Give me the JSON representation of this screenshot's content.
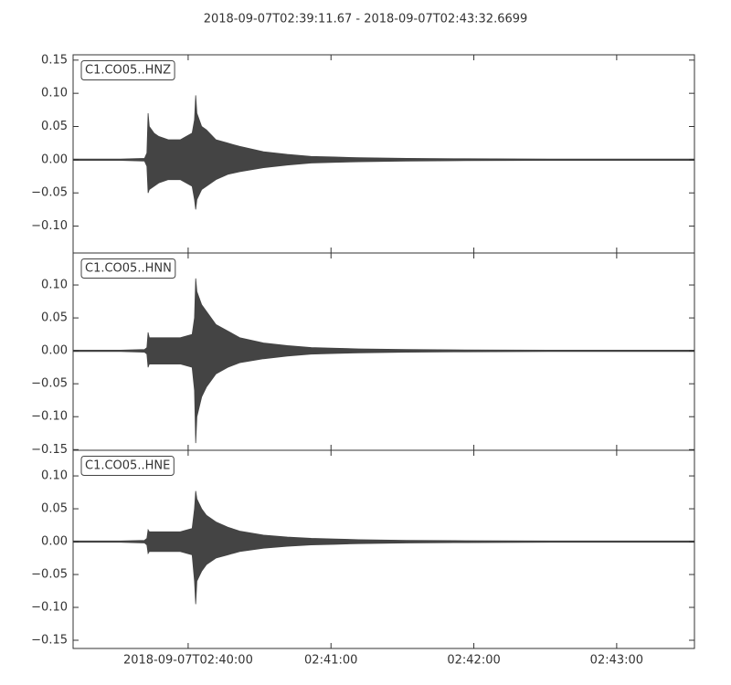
{
  "title": "2018-09-07T02:39:11.67  -  2018-09-07T02:43:32.6699",
  "chart_data": [
    {
      "type": "envelope",
      "annotation": "C1.CO05..HNZ",
      "x": [
        0,
        20,
        30,
        31,
        31.5,
        32,
        34,
        36,
        40,
        45,
        50,
        51,
        51.5,
        52,
        54,
        56,
        60,
        65,
        70,
        80,
        90,
        100,
        110,
        120,
        140,
        160,
        200,
        261
      ],
      "xlim": [
        0,
        261
      ],
      "series": [
        {
          "color": "#444444",
          "values": [
            0.001,
            0.001,
            0.002,
            0.01,
            0.07,
            0.05,
            0.04,
            0.035,
            0.03,
            0.03,
            0.04,
            0.06,
            0.097,
            0.07,
            0.05,
            0.045,
            0.03,
            0.025,
            0.02,
            0.012,
            0.008,
            0.005,
            0.004,
            0.003,
            0.002,
            0.0015,
            0.001,
            0.001
          ]
        },
        {
          "color": "#444444",
          "values": [
            -0.001,
            -0.001,
            -0.002,
            -0.01,
            -0.05,
            -0.045,
            -0.04,
            -0.035,
            -0.03,
            -0.03,
            -0.04,
            -0.06,
            -0.075,
            -0.06,
            -0.045,
            -0.04,
            -0.03,
            -0.022,
            -0.018,
            -0.012,
            -0.008,
            -0.005,
            -0.004,
            -0.003,
            -0.002,
            -0.0015,
            -0.001,
            -0.001
          ]
        }
      ],
      "ylim": [
        -0.1405,
        0.158
      ],
      "yticks": [
        {
          "value": -0.1,
          "label": "−0.10"
        },
        {
          "value": -0.05,
          "label": "−0.05"
        },
        {
          "value": 0,
          "label": "0.00"
        },
        {
          "value": 0.05,
          "label": "0.05"
        },
        {
          "value": 0.1,
          "label": "0.10"
        },
        {
          "value": 0.15,
          "label": "0.15"
        }
      ]
    },
    {
      "type": "envelope",
      "annotation": "C1.CO05..HNN",
      "x": [
        0,
        20,
        30,
        31,
        31.5,
        32,
        34,
        36,
        40,
        45,
        50,
        51,
        51.5,
        52,
        54,
        56,
        60,
        65,
        70,
        80,
        90,
        100,
        110,
        120,
        140,
        160,
        200,
        261
      ],
      "xlim": [
        0,
        261
      ],
      "series": [
        {
          "color": "#444444",
          "values": [
            0.001,
            0.001,
            0.002,
            0.005,
            0.028,
            0.02,
            0.02,
            0.02,
            0.02,
            0.02,
            0.025,
            0.05,
            0.11,
            0.09,
            0.07,
            0.06,
            0.04,
            0.03,
            0.02,
            0.012,
            0.008,
            0.005,
            0.004,
            0.003,
            0.002,
            0.0015,
            0.001,
            0.001
          ]
        },
        {
          "color": "#444444",
          "values": [
            -0.001,
            -0.001,
            -0.002,
            -0.005,
            -0.025,
            -0.02,
            -0.02,
            -0.02,
            -0.02,
            -0.02,
            -0.025,
            -0.06,
            -0.14,
            -0.1,
            -0.07,
            -0.055,
            -0.035,
            -0.025,
            -0.018,
            -0.012,
            -0.008,
            -0.005,
            -0.004,
            -0.003,
            -0.002,
            -0.0015,
            -0.001,
            -0.001
          ]
        }
      ],
      "ylim": [
        -0.151,
        0.1486
      ],
      "yticks": [
        {
          "value": -0.15,
          "label": "−0.15"
        },
        {
          "value": -0.1,
          "label": "−0.10"
        },
        {
          "value": -0.05,
          "label": "−0.05"
        },
        {
          "value": 0,
          "label": "0.00"
        },
        {
          "value": 0.05,
          "label": "0.05"
        },
        {
          "value": 0.1,
          "label": "0.10"
        }
      ]
    },
    {
      "type": "envelope",
      "annotation": "C1.CO05..HNE",
      "x": [
        0,
        20,
        30,
        31,
        31.5,
        32,
        34,
        36,
        40,
        45,
        50,
        51,
        51.5,
        52,
        54,
        56,
        60,
        65,
        70,
        80,
        90,
        100,
        110,
        120,
        140,
        160,
        200,
        261
      ],
      "xlim": [
        0,
        261
      ],
      "xticks": [
        {
          "value": 48.33,
          "label": "2018-09-07T02:40:00"
        },
        {
          "value": 108.33,
          "label": "02:41:00"
        },
        {
          "value": 168.33,
          "label": "02:42:00"
        },
        {
          "value": 228.33,
          "label": "02:43:00"
        }
      ],
      "series": [
        {
          "color": "#444444",
          "values": [
            0.001,
            0.001,
            0.002,
            0.005,
            0.018,
            0.015,
            0.015,
            0.015,
            0.015,
            0.015,
            0.02,
            0.05,
            0.077,
            0.065,
            0.05,
            0.04,
            0.03,
            0.022,
            0.016,
            0.01,
            0.007,
            0.005,
            0.004,
            0.003,
            0.002,
            0.0015,
            0.001,
            0.001
          ]
        },
        {
          "color": "#444444",
          "values": [
            -0.001,
            -0.001,
            -0.002,
            -0.005,
            -0.018,
            -0.015,
            -0.015,
            -0.015,
            -0.015,
            -0.015,
            -0.02,
            -0.06,
            -0.095,
            -0.06,
            -0.045,
            -0.035,
            -0.025,
            -0.02,
            -0.015,
            -0.01,
            -0.007,
            -0.005,
            -0.004,
            -0.003,
            -0.002,
            -0.0015,
            -0.001,
            -0.001
          ]
        }
      ],
      "ylim": [
        -0.1625,
        0.139
      ],
      "yticks": [
        {
          "value": -0.15,
          "label": "−0.15"
        },
        {
          "value": -0.1,
          "label": "−0.10"
        },
        {
          "value": -0.05,
          "label": "−0.05"
        },
        {
          "value": 0,
          "label": "0.00"
        },
        {
          "value": 0.05,
          "label": "0.05"
        },
        {
          "value": 0.1,
          "label": "0.10"
        }
      ]
    }
  ]
}
